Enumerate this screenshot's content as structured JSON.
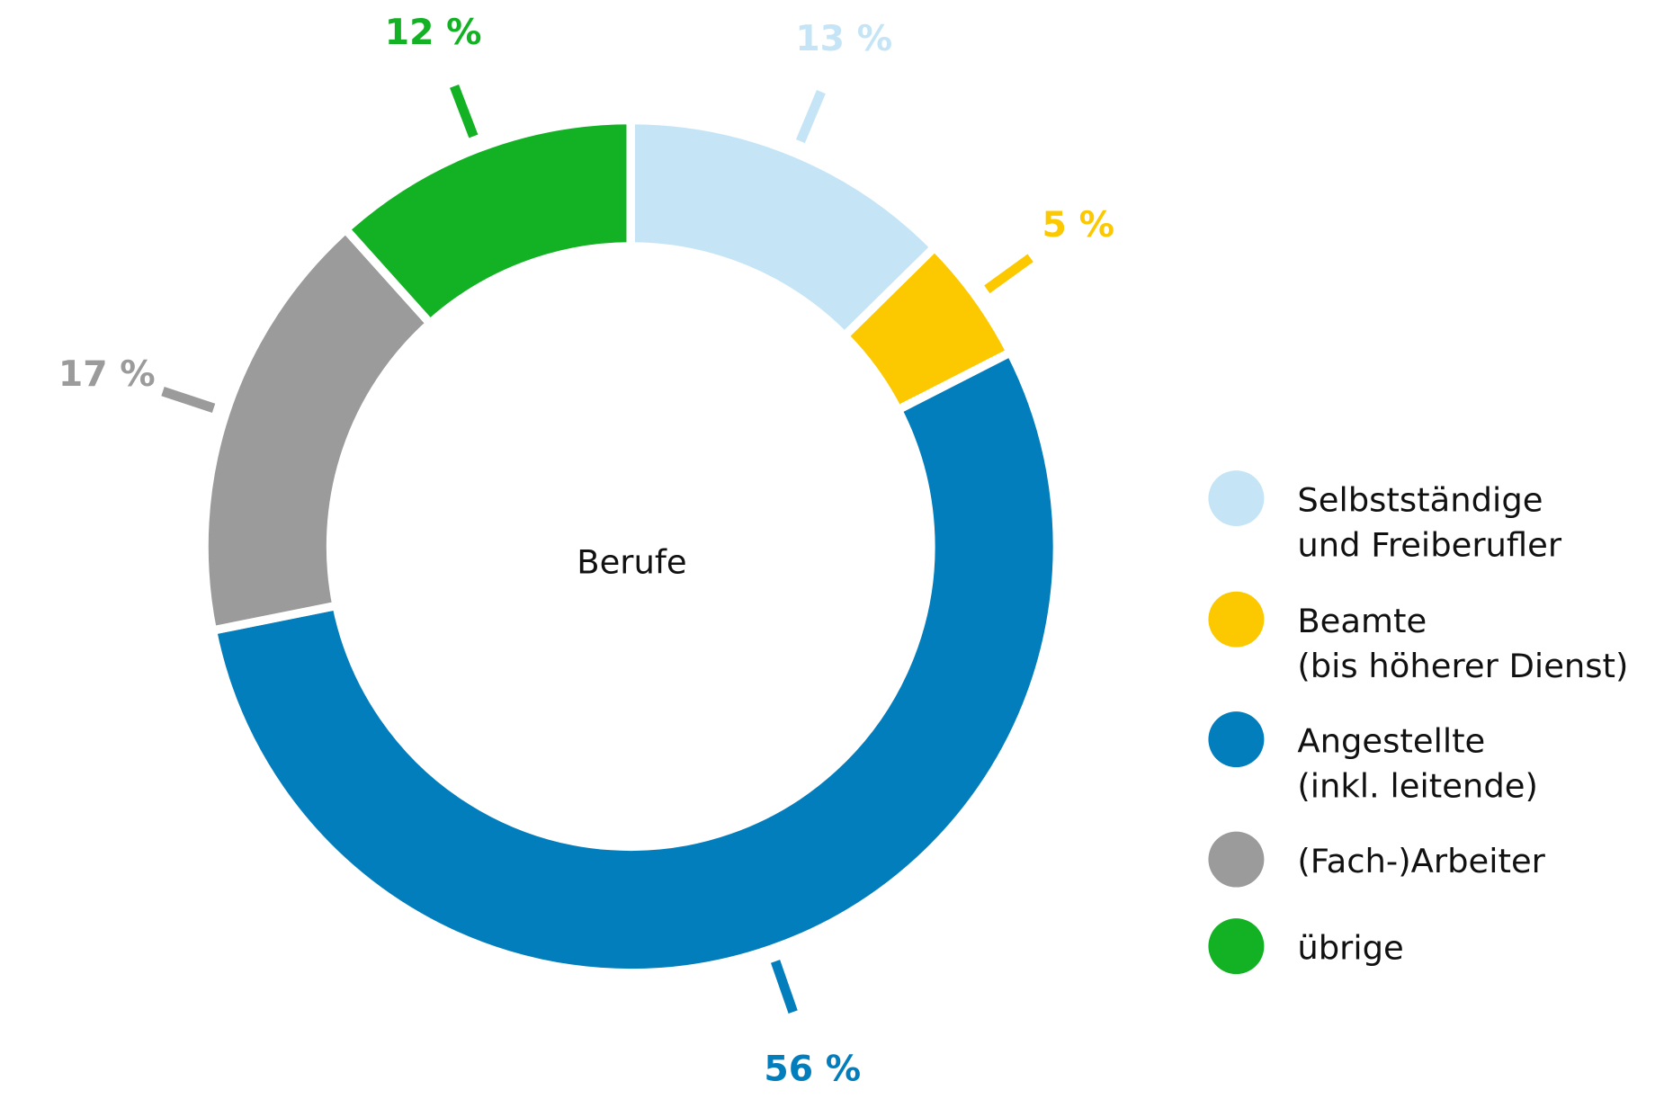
{
  "chart_data": {
    "type": "pie",
    "variant": "donut",
    "center_label": "Berufe",
    "start": "top",
    "direction": "clockwise",
    "legend_position": "right",
    "slices": [
      {
        "label": "Selbstständige und Freiberufler",
        "legend_lines": [
          "Selbstständige",
          "und Freiberufler"
        ],
        "value": 13,
        "value_label": "13 %",
        "color": "#c5e5f6"
      },
      {
        "label": "Beamte (bis höherer Dienst)",
        "legend_lines": [
          "Beamte",
          "(bis höherer Dienst)"
        ],
        "value": 5,
        "value_label": "5 %",
        "color": "#fcc900"
      },
      {
        "label": "Angestellte (inkl. leitende)",
        "legend_lines": [
          "Angestellte",
          "(inkl. leitende)"
        ],
        "value": 56,
        "value_label": "56 %",
        "color": "#037ebd"
      },
      {
        "label": "(Fach-)Arbeiter",
        "legend_lines": [
          "(Fach-)Arbeiter"
        ],
        "value": 17,
        "value_label": "17 %",
        "color": "#9b9b9b"
      },
      {
        "label": "übrige",
        "legend_lines": [
          "übrige"
        ],
        "value": 12,
        "value_label": "12 %",
        "color": "#13b224"
      }
    ]
  }
}
